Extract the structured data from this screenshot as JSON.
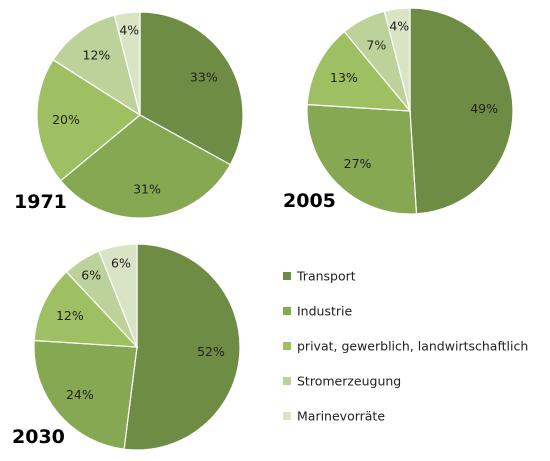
{
  "colors": [
    "#6e8c43",
    "#86a853",
    "#9ec062",
    "#bcd29a",
    "#d8e4c3"
  ],
  "legend": [
    "Transport",
    "Industrie",
    "privat, gewerblich, landwirtschaftlich",
    "Stromerzeugung",
    "Marinevorräte"
  ],
  "chart_data": [
    {
      "type": "pie",
      "title": "1971",
      "categories": [
        "Transport",
        "Industrie",
        "privat, gewerblich, landwirtschaftlich",
        "Stromerzeugung",
        "Marinevorräte"
      ],
      "values": [
        33,
        31,
        20,
        12,
        4
      ],
      "labels": [
        "33%",
        "31%",
        "20%",
        "12%",
        "4%"
      ]
    },
    {
      "type": "pie",
      "title": "2005",
      "categories": [
        "Transport",
        "Industrie",
        "privat, gewerblich, landwirtschaftlich",
        "Stromerzeugung",
        "Marinevorräte"
      ],
      "values": [
        49,
        27,
        13,
        7,
        4
      ],
      "labels": [
        "49%",
        "27%",
        "13%",
        "7%",
        "4%"
      ]
    },
    {
      "type": "pie",
      "title": "2030",
      "categories": [
        "Transport",
        "Industrie",
        "privat, gewerblich, landwirtschaftlich",
        "Stromerzeugung",
        "Marinevorräte"
      ],
      "values": [
        52,
        24,
        12,
        6,
        6
      ],
      "labels": [
        "52%",
        "24%",
        "12%",
        "6%",
        "6%"
      ]
    }
  ]
}
